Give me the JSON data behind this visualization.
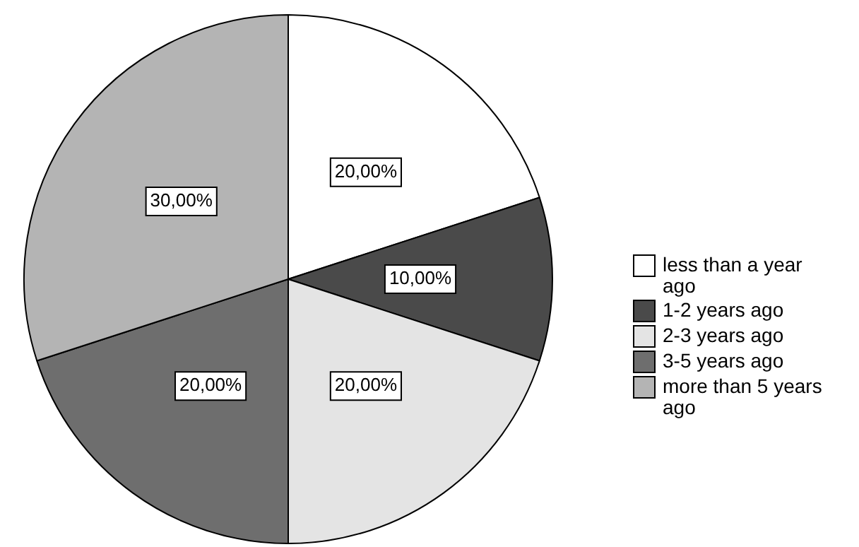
{
  "chart_data": {
    "type": "pie",
    "categories": [
      "less than a year ago",
      "1-2 years ago",
      "2-3 years ago",
      "3-5 years ago",
      "more than 5 years ago"
    ],
    "values": [
      20,
      10,
      20,
      20,
      30
    ],
    "colors": [
      "#ffffff",
      "#4a4a4a",
      "#e4e4e4",
      "#6e6e6e",
      "#b4b4b4"
    ],
    "value_labels": [
      "20,00%",
      "10,00%",
      "20,00%",
      "20,00%",
      "30,00%"
    ],
    "legend": "right"
  }
}
